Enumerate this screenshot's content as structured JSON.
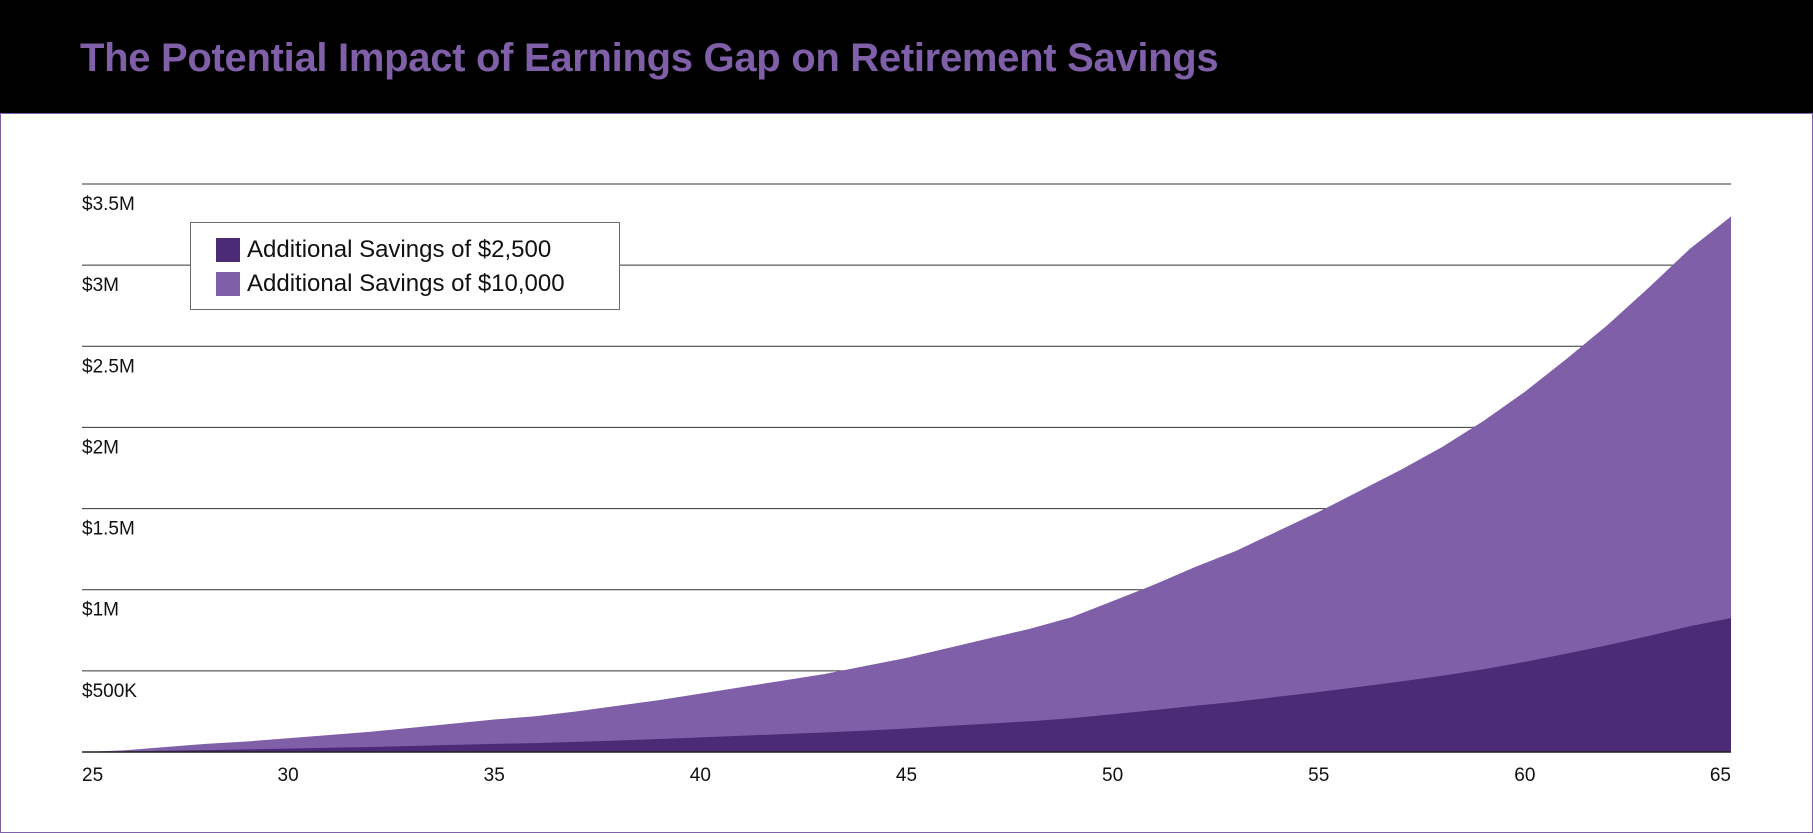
{
  "title": "The Potential Impact of Earnings Gap on Retirement Savings",
  "colors": {
    "brand": "#7e5fa8",
    "header_bg": "#000000",
    "series_2500": "#4b2a76",
    "series_10000": "#7e5fa8"
  },
  "chart_data": {
    "type": "area",
    "title": "The Potential Impact of Earnings Gap on Retirement Savings",
    "xlabel": "",
    "ylabel": "",
    "xlim": [
      25,
      65
    ],
    "ylim": [
      0,
      3500000
    ],
    "x_ticks": [
      25,
      30,
      35,
      40,
      45,
      50,
      55,
      60,
      65
    ],
    "x_tick_labels": [
      "25",
      "30",
      "35",
      "40",
      "45",
      "50",
      "55",
      "60",
      "65"
    ],
    "y_ticks": [
      500000,
      1000000,
      1500000,
      2000000,
      2500000,
      3000000,
      3500000
    ],
    "y_tick_labels": [
      "$500K",
      "$1M",
      "$1.5M",
      "$2M",
      "$2.5M",
      "$3M",
      "$3.5M"
    ],
    "grid": "horizontal",
    "legend_position": "top-left",
    "x": [
      25,
      26,
      27,
      28,
      29,
      30,
      31,
      32,
      33,
      34,
      35,
      36,
      37,
      38,
      39,
      40,
      41,
      42,
      43,
      44,
      45,
      46,
      47,
      48,
      49,
      50,
      51,
      52,
      53,
      54,
      55,
      56,
      57,
      58,
      59,
      60,
      61,
      62,
      63,
      64,
      65
    ],
    "series": [
      {
        "name": "Additional Savings of $10,000",
        "color": "#7e5fa8",
        "values": [
          0,
          10000,
          30000,
          50000,
          65000,
          85000,
          105000,
          125000,
          150000,
          175000,
          200000,
          220000,
          250000,
          285000,
          320000,
          360000,
          400000,
          440000,
          480000,
          530000,
          580000,
          640000,
          700000,
          760000,
          830000,
          930000,
          1030000,
          1140000,
          1240000,
          1360000,
          1480000,
          1610000,
          1740000,
          1880000,
          2040000,
          2220000,
          2420000,
          2630000,
          2860000,
          3100000,
          3300000
        ]
      },
      {
        "name": "Additional Savings of $2,500",
        "color": "#4b2a76",
        "values": [
          0,
          3000,
          8000,
          12000,
          16000,
          21000,
          26000,
          31000,
          37000,
          44000,
          50000,
          55000,
          62000,
          71000,
          80000,
          90000,
          100000,
          110000,
          120000,
          132000,
          145000,
          160000,
          175000,
          190000,
          208000,
          232000,
          258000,
          285000,
          310000,
          340000,
          370000,
          402000,
          435000,
          470000,
          510000,
          555000,
          605000,
          658000,
          715000,
          775000,
          825000
        ]
      }
    ]
  }
}
